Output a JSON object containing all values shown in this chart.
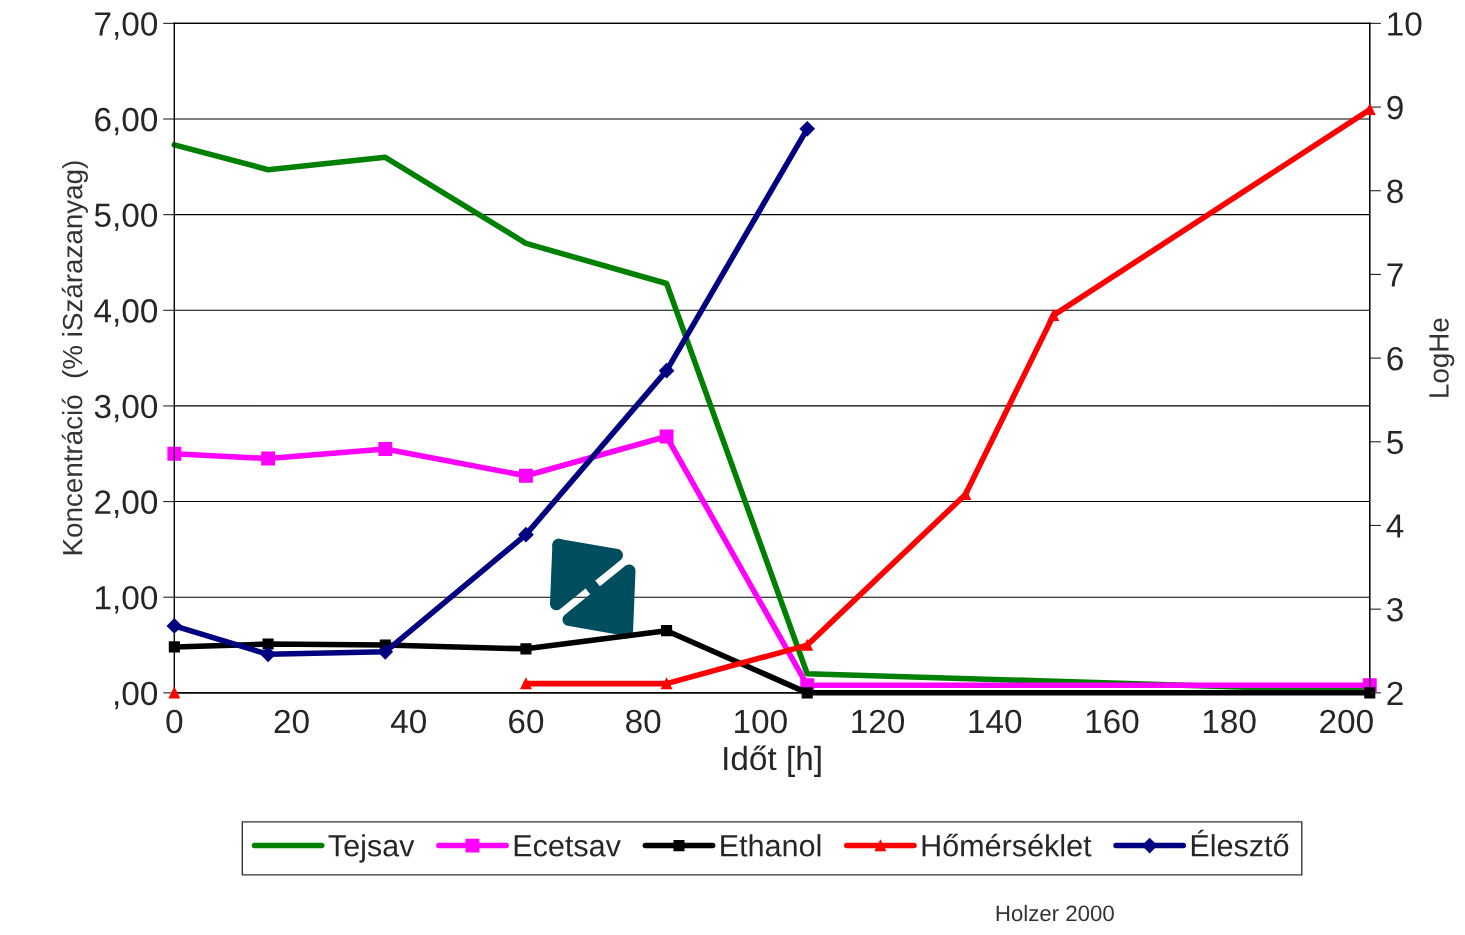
{
  "chart_data": {
    "type": "line",
    "xlabel": "Időt [h]",
    "ylabel": "Koncentráció  (% iSzárazanyag)",
    "y2label": "LogHe",
    "xlim": [
      0,
      204
    ],
    "xticks": [
      0,
      20,
      40,
      60,
      80,
      100,
      120,
      140,
      160,
      180,
      200
    ],
    "ylim": [
      0,
      7
    ],
    "yticks": [
      {
        "value": 0,
        "label": ",00"
      },
      {
        "value": 1,
        "label": "1,00"
      },
      {
        "value": 2,
        "label": "2,00"
      },
      {
        "value": 3,
        "label": "3,00"
      },
      {
        "value": 4,
        "label": "4,00"
      },
      {
        "value": 5,
        "label": "5,00"
      },
      {
        "value": 6,
        "label": "6,00"
      },
      {
        "value": 7,
        "label": "7,00"
      }
    ],
    "y2lim": [
      2,
      10
    ],
    "y2ticks": [
      2,
      3,
      4,
      5,
      6,
      7,
      8,
      9,
      10
    ],
    "grid": "y",
    "legend": "bottom",
    "line_style": "solid",
    "series": [
      {
        "name": "Tejsav",
        "color": "#008000",
        "marker": "none",
        "x": [
          0,
          16,
          36,
          60,
          84,
          108,
          204
        ],
        "values": [
          5.73,
          5.47,
          5.6,
          4.7,
          4.28,
          0.2,
          0.02
        ]
      },
      {
        "name": "Ecetsav",
        "color": "#ff00ff",
        "marker": "square",
        "x": [
          0,
          16,
          36,
          60,
          84,
          108,
          204
        ],
        "values": [
          2.5,
          2.45,
          2.55,
          2.27,
          2.68,
          0.08,
          0.08
        ]
      },
      {
        "name": "Ethanol",
        "color": "#000000",
        "marker": "square",
        "x": [
          0,
          16,
          36,
          60,
          84,
          108,
          204
        ],
        "values": [
          0.48,
          0.51,
          0.5,
          0.46,
          0.65,
          0.0,
          0.0
        ]
      },
      {
        "name": "Hőmérséklet",
        "color": "#ff0000",
        "marker": "triangle",
        "axis": "y2",
        "x": [
          0,
          16,
          60,
          84,
          108,
          135,
          150,
          204
        ],
        "values": [
          2.0,
          null,
          2.11,
          2.11,
          2.57,
          4.37,
          6.51,
          8.97
        ]
      },
      {
        "name": "Élesztő",
        "color": "#000080",
        "marker": "diamond",
        "axis": "y2",
        "x": [
          0,
          16,
          36,
          60,
          84,
          108
        ],
        "values": [
          2.8,
          2.46,
          2.49,
          3.89,
          5.85,
          8.74
        ]
      }
    ],
    "annotations": [
      "Holzer 2000"
    ]
  }
}
